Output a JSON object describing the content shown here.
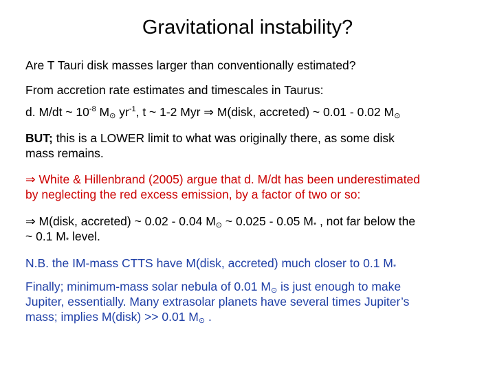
{
  "title": "Gravitational instability?",
  "p1": "Are T Tauri disk masses larger than conventionally estimated?",
  "p2": "From accretion rate estimates and timescales in Taurus:",
  "p3": {
    "a": "d. M/dt ~ 10",
    "exp1": "-8",
    "b": " M",
    "sun1": "⊙",
    "c": " yr",
    "exp2": "-1",
    "d": ", t ~ 1-2 Myr ",
    "arrow": "⇒",
    "e": " M(disk, accreted) ~ 0.01 - 0.02 M",
    "sun2": "⊙"
  },
  "p4": {
    "bold": "BUT;",
    "line1": " this is a LOWER limit to what was originally there, as some disk",
    "line2": "mass remains."
  },
  "p5": {
    "arrow": "⇒",
    "line1": " White & Hillenbrand (2005) argue that d. M/dt has been underestimated",
    "line2": "by neglecting the red excess emission, by a factor of two or so:"
  },
  "p6": {
    "arrow": "⇒",
    "a": " M(disk, accreted) ~ 0.02 - 0.04 M",
    "sun": "⊙",
    "b": " ~ 0.025 - 0.05 M",
    "star1": "*",
    "c": " , not far below the",
    "d": "~ 0.1 M",
    "star2": "*",
    "e": " level."
  },
  "p7": {
    "a": "N.B. the IM-mass CTTS have M(disk, accreted) much closer to 0.1 M",
    "star": "*"
  },
  "p8": {
    "a": "Finally; minimum-mass solar nebula of 0.01 M",
    "sun1": "⊙",
    "b": " is just enough to make",
    "line2": "Jupiter, essentially.  Many extrasolar planets have several times Jupiter’s",
    "c": "mass; implies M(disk) >> 0.01 M",
    "sun2": "⊙",
    "d": " ."
  },
  "colors": {
    "text": "#000000",
    "red": "#cc0000",
    "blue": "#1f3fa6"
  }
}
